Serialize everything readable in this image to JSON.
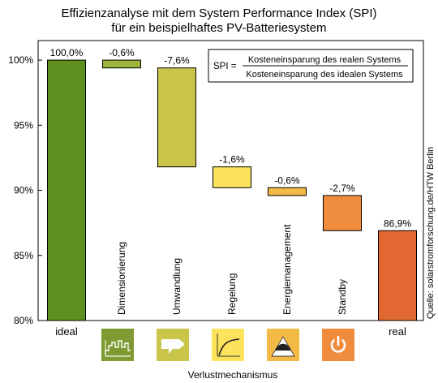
{
  "chart_data": {
    "type": "bar",
    "subtype": "waterfall",
    "title": [
      "Effizienzanalyse mit dem System Performance Index (SPI)",
      "für ein beispielhaftes PV-Batteriesystem"
    ],
    "xlabel": "Verlustmechanismus",
    "ylabel": "",
    "ylim": [
      80,
      101.5
    ],
    "yticks": [
      "80%",
      "85%",
      "90%",
      "95%",
      "100%"
    ],
    "ytick_values": [
      80,
      85,
      90,
      95,
      100
    ],
    "grid": false,
    "bars": [
      {
        "category": "ideal",
        "start": 80,
        "end": 100,
        "label": "100,0%",
        "color": "#5f8f1f",
        "vertical_label": false
      },
      {
        "category": "Dimensionierung",
        "start": 100,
        "end": 99.4,
        "label": "-0,6%",
        "color": "#9cb63b",
        "vertical_label": true
      },
      {
        "category": "Umwandlung",
        "start": 99.4,
        "end": 91.8,
        "label": "-7,6%",
        "color": "#c8c54a",
        "vertical_label": true
      },
      {
        "category": "Regelung",
        "start": 91.8,
        "end": 90.2,
        "label": "-1,6%",
        "color": "#fde35b",
        "vertical_label": true
      },
      {
        "category": "Energiemanagement",
        "start": 90.2,
        "end": 89.6,
        "label": "-0,6%",
        "color": "#f3ba45",
        "vertical_label": true
      },
      {
        "category": "Standby",
        "start": 89.6,
        "end": 86.9,
        "label": "-2,7%",
        "color": "#ef8c3d",
        "vertical_label": true
      },
      {
        "category": "real",
        "start": 80,
        "end": 86.9,
        "label": "86,9%",
        "color": "#e26832",
        "vertical_label": false
      }
    ],
    "annotations": {
      "formula_lhs": "SPI =",
      "formula_numerator": "Kosteneinsparung des realen Systems",
      "formula_denominator": "Kosteneinsparung des idealen Systems",
      "source": "Quelle: solarstromforschung.de/HTW Berlin"
    }
  },
  "icons": [
    {
      "name": "load-profile-icon",
      "color": "#7e9a30"
    },
    {
      "name": "inverter-arrow-icon",
      "color": "#c8c54a"
    },
    {
      "name": "control-curve-icon",
      "color": "#fde35b"
    },
    {
      "name": "energy-management-icon",
      "color": "#f3ba45"
    },
    {
      "name": "power-icon",
      "color": "#ef8c3d"
    }
  ]
}
